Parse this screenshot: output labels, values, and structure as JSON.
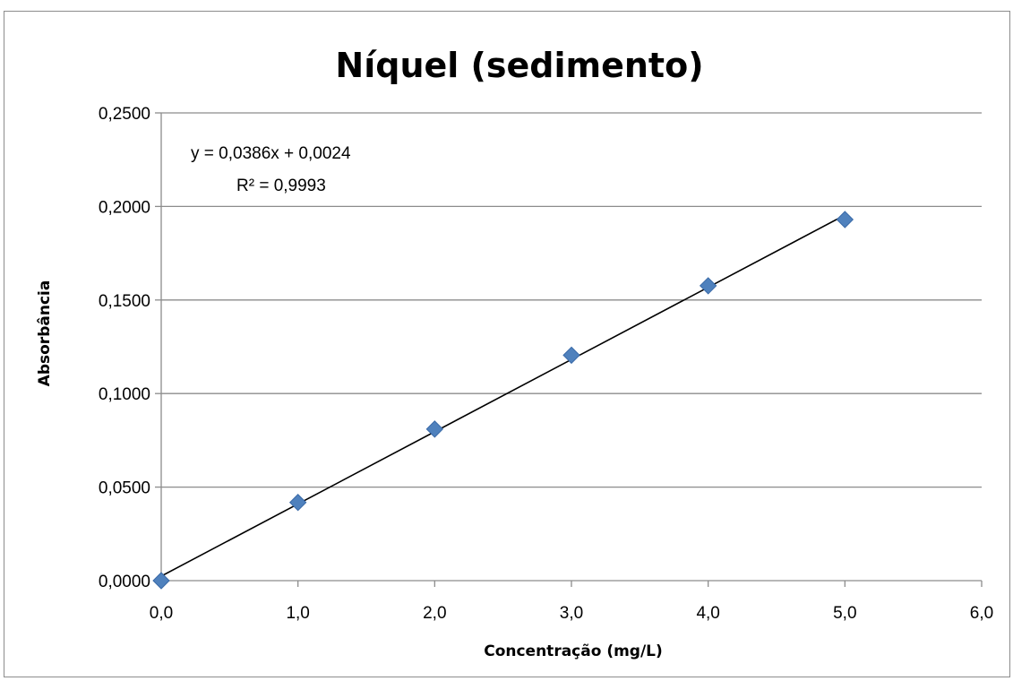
{
  "chart_data": {
    "type": "scatter",
    "title": "Níquel (sedimento)",
    "xlabel": "Concentração (mg/L)",
    "ylabel": "Absorbância",
    "xlim": [
      0,
      6
    ],
    "ylim": [
      0,
      0.25
    ],
    "x_ticks": [
      "0,0",
      "1,0",
      "2,0",
      "3,0",
      "4,0",
      "5,0",
      "6,0"
    ],
    "y_ticks": [
      "0,0000",
      "0,0500",
      "0,1000",
      "0,1500",
      "0,2000",
      "0,2500"
    ],
    "series": [
      {
        "x": [
          0,
          1,
          2,
          3,
          4,
          5
        ],
        "y": [
          0.0,
          0.0418,
          0.081,
          0.1205,
          0.1576,
          0.193
        ],
        "marker": "diamond",
        "color": "#4f81bd"
      }
    ],
    "trendline": {
      "type": "linear",
      "slope": 0.0386,
      "intercept": 0.0024,
      "x_range": [
        0,
        5
      ],
      "color": "#000000"
    },
    "equation_label": "y = 0,0386x + 0,0024",
    "r2_label": "R² = 0,9993",
    "grid": {
      "horizontal": true,
      "vertical": false,
      "color": "#8c8c8c"
    },
    "legend": "none"
  }
}
